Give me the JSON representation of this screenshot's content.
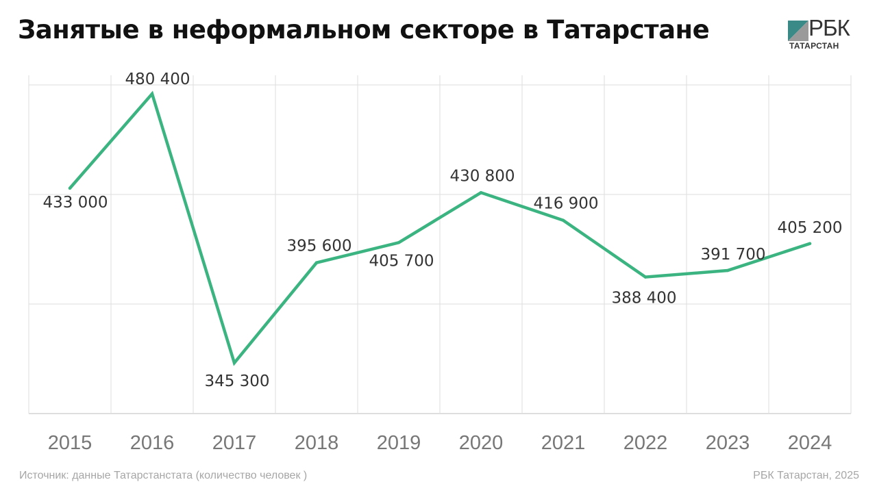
{
  "header": {
    "title": "Занятые в неформальном секторе в Татарстане"
  },
  "logo": {
    "name": "РБК",
    "subtitle": "ТАТАРСТАН"
  },
  "footer": {
    "source": "Источник: данные Татарстанстата (количество человек )",
    "credit": "РБК Татарстан, 2025"
  },
  "colors": {
    "line": "#3cb481",
    "grid": "#dddddd",
    "label": "#333333",
    "tick": "#777777"
  },
  "chart_data": {
    "type": "line",
    "categories": [
      "2015",
      "2016",
      "2017",
      "2018",
      "2019",
      "2020",
      "2021",
      "2022",
      "2023",
      "2024"
    ],
    "values": [
      433000,
      480400,
      345300,
      395600,
      405700,
      430800,
      416900,
      388400,
      391700,
      405200
    ],
    "data_labels": [
      "433 000",
      "480 400",
      "345 300",
      "395 600",
      "405 700",
      "430 800",
      "416 900",
      "388 400",
      "391 700",
      "405 200"
    ],
    "xlabel": "",
    "ylabel": "",
    "grid": true,
    "legend": "none"
  }
}
